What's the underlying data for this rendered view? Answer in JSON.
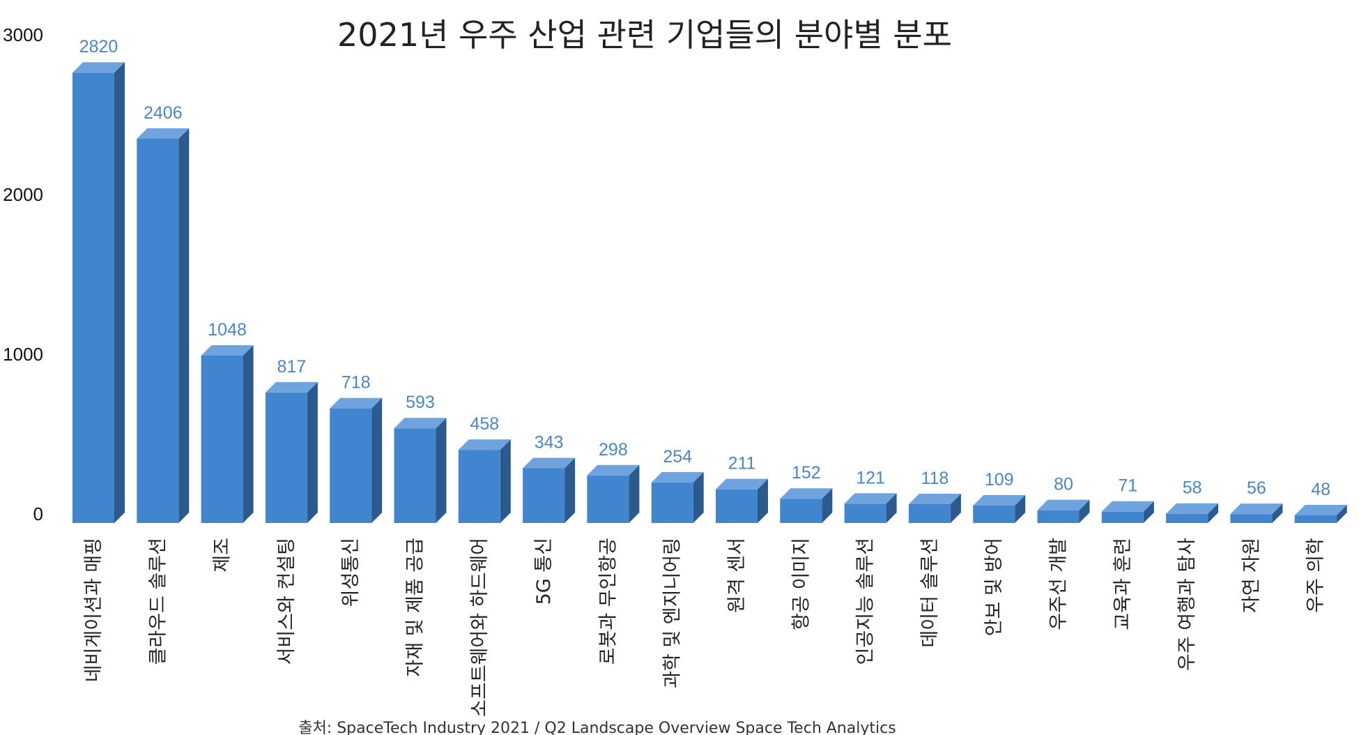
{
  "chart_data": {
    "type": "bar",
    "title": "2021년 우주 산업 관련 기업들의 분야별 분포",
    "xlabel": "",
    "ylabel": "",
    "ylim": [
      0,
      3000
    ],
    "yticks": [
      "0",
      "1000",
      "2000",
      "3000"
    ],
    "categories": [
      "네비게이션과 매핑",
      "클라우드 솔루션",
      "제조",
      "서비스와 컨설팅",
      "위성통신",
      "자재 및 제품 공급",
      "소프트웨어와 하드웨어",
      "5G 통신",
      "로봇과 무인항공",
      "과학 및 엔지니어링",
      "원격 센서",
      "항공 이미지",
      "인공지능 솔루션",
      "데이터 솔루션",
      "안보 및 방어",
      "우주선 개발",
      "교육과 훈련",
      "우주 여행과 탐사",
      "자연 자원",
      "우주 의학"
    ],
    "values": [
      2820,
      2406,
      1048,
      817,
      718,
      593,
      458,
      343,
      298,
      254,
      211,
      152,
      121,
      118,
      109,
      80,
      71,
      58,
      56,
      48
    ],
    "value_labels": [
      "2820",
      "2406",
      "1048",
      "817",
      "718",
      "593",
      "458",
      "343",
      "298",
      "254",
      "211",
      "152",
      "121",
      "118",
      "109",
      "80",
      "71",
      "58",
      "56",
      "48"
    ],
    "grid": false,
    "legend": "none",
    "style": "3d-bar",
    "colors": {
      "bar_front": "#4285CF",
      "bar_top": "#6FA3DD",
      "bar_side": "#2B5A8E",
      "value_label": "#4A86C6"
    }
  },
  "source": "출처: SpaceTech Industry 2021 / Q2 Landscape Overview Space Tech Analytics"
}
